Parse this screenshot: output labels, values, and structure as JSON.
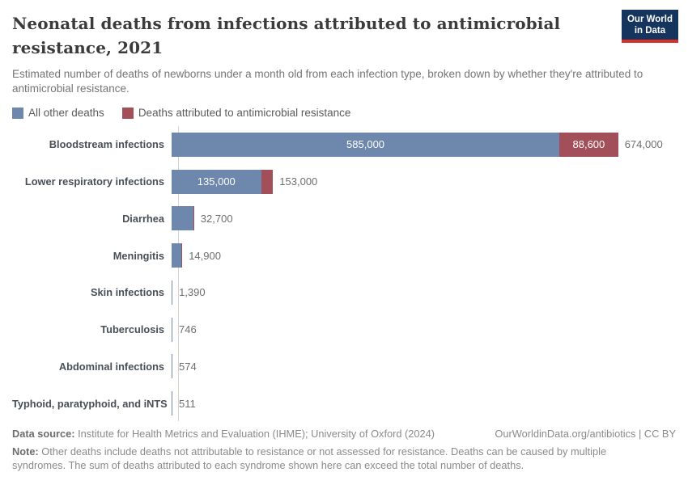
{
  "header": {
    "title": "Neonatal deaths from infections attributed to antimicrobial resistance, 2021",
    "subtitle": "Estimated number of deaths of newborns under a month old from each infection type, broken down by whether they're attributed to antimicrobial resistance.",
    "logo_line1": "Our World",
    "logo_line2": "in Data"
  },
  "legend": [
    {
      "label": "All other deaths",
      "color": "#6d87ad"
    },
    {
      "label": "Deaths attributed to antimicrobial resistance",
      "color": "#a34f59"
    }
  ],
  "colors": {
    "other_deaths": "#6d87ad",
    "amr_deaths": "#a34f59",
    "axis_line": "#d4d4d4",
    "logo_bg": "#15345e",
    "logo_stripe": "#d93025"
  },
  "chart_data": {
    "type": "bar",
    "orientation": "horizontal",
    "title": "Neonatal deaths from infections attributed to antimicrobial resistance, 2021",
    "x_max": 674000,
    "grid": false,
    "legend_position": "top",
    "series_names": [
      "All other deaths",
      "Deaths attributed to antimicrobial resistance"
    ],
    "rows": [
      {
        "label": "Bloodstream infections",
        "other": 585000,
        "amr": 88600,
        "total": 674000,
        "other_label": "585,000",
        "amr_label": "88,600",
        "total_label": "674,000"
      },
      {
        "label": "Lower respiratory infections",
        "other": 135000,
        "total": 153000,
        "other_label": "135,000",
        "total_label": "153,000"
      },
      {
        "label": "Diarrhea",
        "total": 32700,
        "total_label": "32,700"
      },
      {
        "label": "Meningitis",
        "total": 14900,
        "total_label": "14,900"
      },
      {
        "label": "Skin infections",
        "total": 1390,
        "total_label": "1,390"
      },
      {
        "label": "Tuberculosis",
        "total": 746,
        "total_label": "746"
      },
      {
        "label": "Abdominal infections",
        "total": 574,
        "total_label": "574"
      },
      {
        "label": "Typhoid, paratyphoid, and iNTS",
        "total": 511,
        "total_label": "511"
      }
    ]
  },
  "footer": {
    "datasource_label": "Data source:",
    "datasource_text": " Institute for Health Metrics and Evaluation (IHME); University of Oxford (2024)",
    "link_text": "OurWorldinData.org/antibiotics | CC BY",
    "note_label": "Note:",
    "note_text": " Other deaths include deaths not attributable to resistance or not assessed for resistance. Deaths can be caused by multiple syndromes. The sum of deaths attributed to each syndrome shown here can exceed the total number of deaths."
  }
}
